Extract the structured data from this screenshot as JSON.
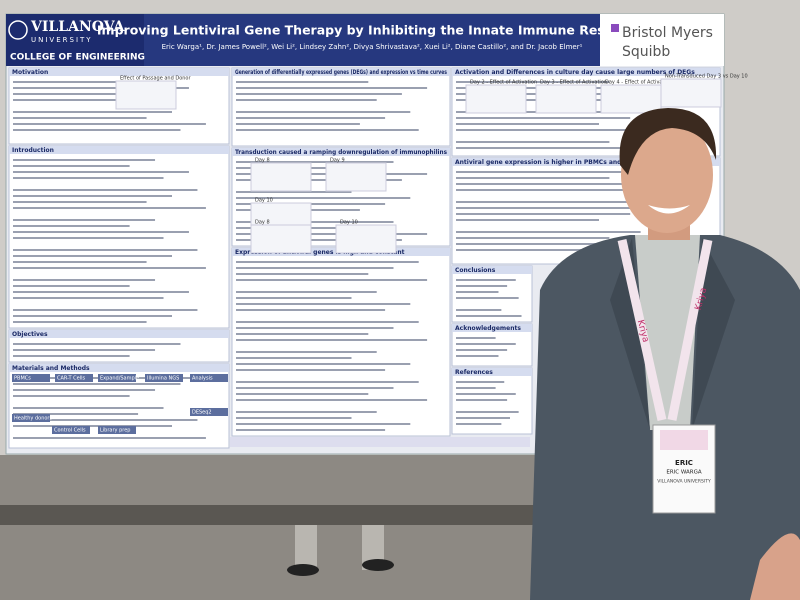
{
  "poster": {
    "logo": {
      "name": "VILLANOVA",
      "subtitle": "UNIVERSITY",
      "college": "COLLEGE OF ENGINEERING"
    },
    "title": "Improving Lentiviral Gene Therapy by Inhibiting the Innate Immune Response",
    "authors": "Eric Warga¹, Dr. James Powell², Wei Li², Lindsey Zahn², Divya Shrivastava², Xuei Li², Diane Castillo², and Dr. Jacob Elmer¹",
    "sponsor": {
      "line1": "Bristol Myers",
      "line2": "Squibb"
    },
    "sections": [
      "Motivation",
      "Introduction",
      "Objectives",
      "Materials and Methods",
      "Generation of differentially expressed genes (DEGs) and expression vs time curves",
      "Transduction caused a ramping downregulation of immunophilins",
      "Expression of antiviral genes is high and constant",
      "Activation and Differences in culture day cause large numbers of DEGs",
      "Antiviral gene expression is higher in PBMCs and T cells than in HEK",
      "Conclusions",
      "Acknowledgements",
      "References"
    ],
    "figure_labels": [
      "Effect of Passage and Donor",
      "Day 8",
      "Day 9",
      "Day 10",
      "Day 8",
      "Day 10",
      "Day 2 - Effect of Activation",
      "Day 3 - Effect of Activation",
      "Day 4 - Effect of Activation",
      "Non-Transduced Day 3 vs Day 10"
    ],
    "methods_steps": [
      "PBMCs",
      "CAR-T Cells",
      "Expand/Sample",
      "Illumina NGS",
      "Analysis",
      "DESeq2",
      "Healthy donors",
      "Control Cells",
      "Library prep"
    ]
  },
  "badge": {
    "first_name": "ERIC",
    "full_name": "ERIC WARGA",
    "affiliation": "VILLANOVA UNIVERSITY"
  },
  "lanyard": "Kriya"
}
